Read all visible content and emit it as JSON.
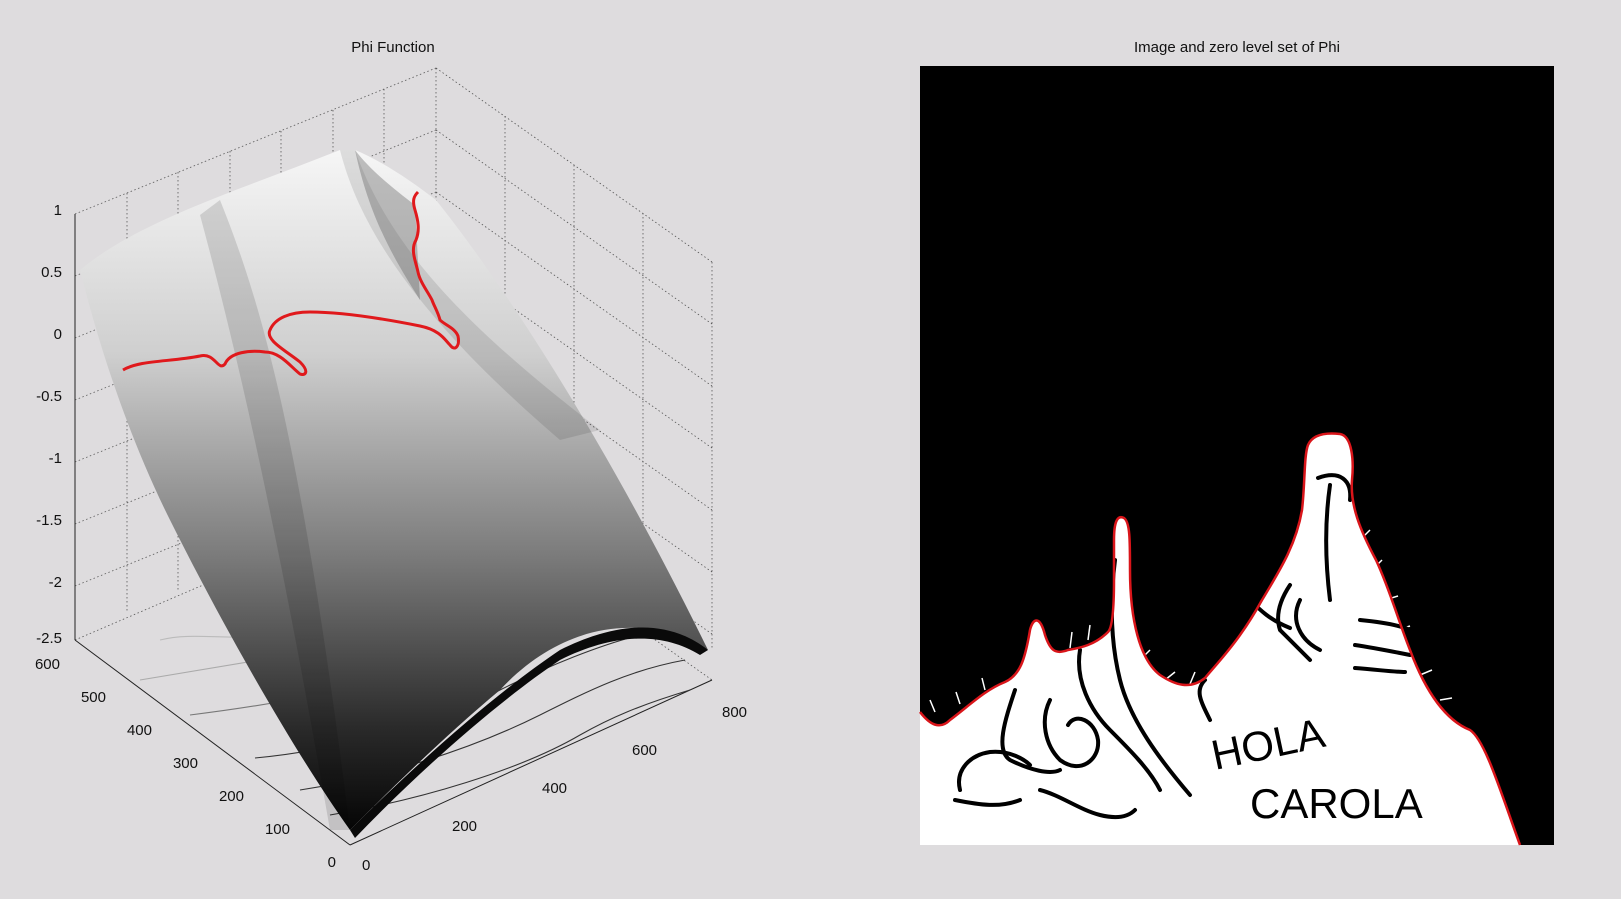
{
  "window": {
    "background": "#dedcde"
  },
  "chart_data": [
    {
      "type": "surface",
      "title": "Phi Function",
      "xlabel": "",
      "ylabel": "",
      "zlabel": "",
      "x_ticks": [
        "0",
        "200",
        "400",
        "600",
        "800"
      ],
      "y_ticks": [
        "0",
        "100",
        "200",
        "300",
        "400",
        "500",
        "600"
      ],
      "z_ticks": [
        "1",
        "0.5",
        "0",
        "-0.5",
        "-1",
        "-1.5",
        "-2",
        "-2.5"
      ],
      "xlim": [
        0,
        800
      ],
      "ylim": [
        0,
        600
      ],
      "zlim": [
        -2.5,
        1
      ],
      "grid": true,
      "colormap": "gray",
      "zero_level_color": "#e0191c"
    },
    {
      "type": "image",
      "title": "Image and zero level set of Phi",
      "background_color": "#000000",
      "foreground_color": "#ffffff",
      "contour_color": "#d9151a",
      "handwritten_text": [
        "HOLA",
        "CAROLA"
      ]
    }
  ]
}
